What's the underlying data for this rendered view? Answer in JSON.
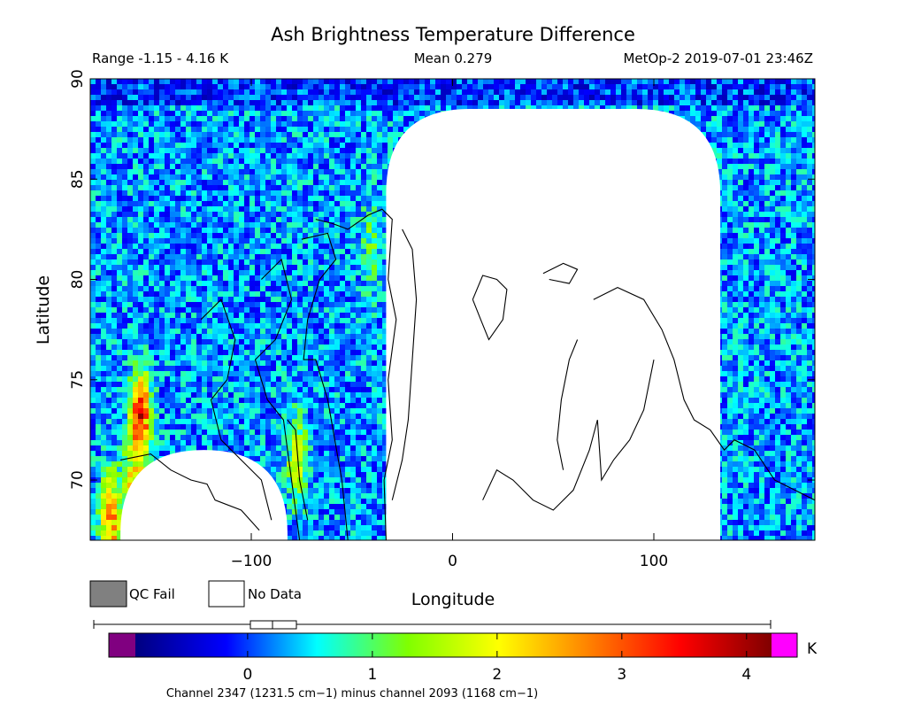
{
  "chart_data": {
    "type": "heatmap",
    "title": "Ash Brightness Temperature Difference",
    "range_text": "Range -1.15 - 4.16 K",
    "mean_text": "Mean 0.279",
    "source_text": "MetOp-2 2019-07-01 23:46Z",
    "xlabel": "Longitude",
    "ylabel": "Latitude",
    "xlim": [
      -180,
      180
    ],
    "ylim": [
      67,
      90
    ],
    "x_ticks": [
      {
        "value": -100,
        "label": "−100"
      },
      {
        "value": 0,
        "label": "0"
      },
      {
        "value": 100,
        "label": "100"
      }
    ],
    "y_ticks": [
      {
        "value": 70,
        "label": "70"
      },
      {
        "value": 75,
        "label": "75"
      },
      {
        "value": 80,
        "label": "80"
      },
      {
        "value": 85,
        "label": "85"
      },
      {
        "value": 90,
        "label": "90"
      }
    ],
    "summary": {
      "min": -1.15,
      "max": 4.16,
      "mean": 0.279,
      "unit": "K"
    },
    "colorbar": {
      "vmin": -0.9,
      "vmax": 4.2,
      "unit": "K",
      "ticks": [
        {
          "value": 0,
          "label": "0"
        },
        {
          "value": 1,
          "label": "1"
        },
        {
          "value": 2,
          "label": "2"
        },
        {
          "value": 3,
          "label": "3"
        },
        {
          "value": 4,
          "label": "4"
        }
      ],
      "stops": [
        "#000080",
        "#0000ff",
        "#00ffff",
        "#80ff00",
        "#ffff00",
        "#ff8000",
        "#ff0000",
        "#800000"
      ],
      "under_color": "#800080",
      "over_color": "#ff00ff"
    },
    "no_data_regions": [
      {
        "lon_min": -33,
        "lon_max": 133,
        "lat_top": 88.5
      },
      {
        "lon_min": -165,
        "lon_max": -82,
        "lat_top": 71.5
      }
    ],
    "hotspots": [
      {
        "lon": -155,
        "lat": 73,
        "value": 3.9
      },
      {
        "lon": -170,
        "lat": 68,
        "value": 3.2
      },
      {
        "lon": -160,
        "lat": 70,
        "value": 1.8
      },
      {
        "lon": -77,
        "lat": 71,
        "value": 2.1
      },
      {
        "lon": -40,
        "lat": 81.5,
        "value": 1.2
      }
    ],
    "legend": [
      {
        "label": "QC Fail",
        "color": "#808080"
      },
      {
        "label": "No Data",
        "color": "#ffffff"
      }
    ],
    "caption": "Channel 2347 (1231.5 cm−1) minus channel 2093 (1168 cm−1)"
  }
}
